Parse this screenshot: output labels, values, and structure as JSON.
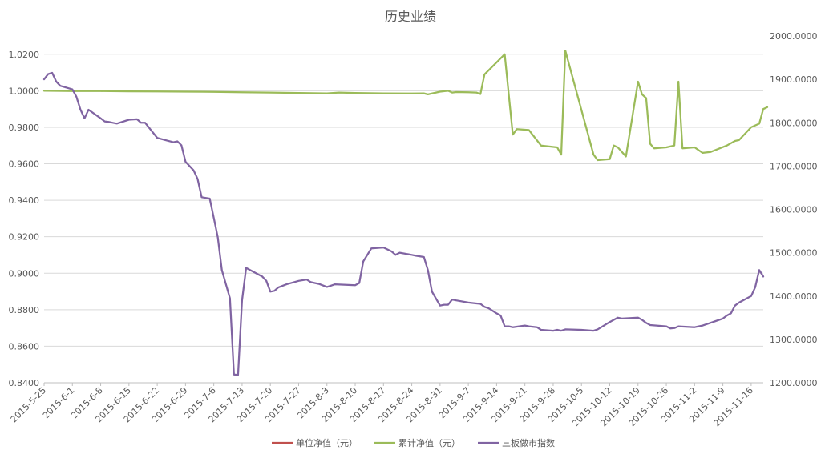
{
  "chart_data": {
    "type": "line",
    "title": "历史业绩",
    "grid": true,
    "legend_position": "bottom",
    "x_tick_labels": [
      "2015-5-25",
      "2015-6-1",
      "2015-6-8",
      "2015-6-15",
      "2015-6-22",
      "2015-6-29",
      "2015-7-6",
      "2015-7-13",
      "2015-7-20",
      "2015-7-27",
      "2015-8-3",
      "2015-8-10",
      "2015-8-17",
      "2015-8-24",
      "2015-8-31",
      "2015-9-7",
      "2015-9-14",
      "2015-9-21",
      "2015-9-28",
      "2015-10-5",
      "2015-10-12",
      "2015-10-19",
      "2015-10-26",
      "2015-11-2",
      "2015-11-9",
      "2015-11-16"
    ],
    "x_range": [
      "2015-5-25",
      "2015-11-19"
    ],
    "y_left": {
      "range": [
        0.84,
        1.03
      ],
      "ticks": [
        "0.8400",
        "0.8600",
        "0.8800",
        "0.9000",
        "0.9200",
        "0.9400",
        "0.9600",
        "0.9800",
        "1.0000",
        "1.0200"
      ]
    },
    "y_right": {
      "range": [
        1200,
        2000
      ],
      "ticks": [
        "1200.0000",
        "1300.0000",
        "1400.0000",
        "1500.0000",
        "1600.0000",
        "1700.0000",
        "1800.0000",
        "1900.0000",
        "2000.0000"
      ]
    },
    "series": [
      {
        "name": "单位净值（元）",
        "color": "#c0504d",
        "axis": "left",
        "points": []
      },
      {
        "name": "累计净值（元）",
        "color": "#9bbb59",
        "axis": "left",
        "points": [
          [
            "2015-5-25",
            1.0
          ],
          [
            "2015-6-1",
            0.9998
          ],
          [
            "2015-6-8",
            0.9998
          ],
          [
            "2015-6-15",
            0.9997
          ],
          [
            "2015-6-22",
            0.9996
          ],
          [
            "2015-6-29",
            0.9995
          ],
          [
            "2015-7-6",
            0.9994
          ],
          [
            "2015-7-13",
            0.9992
          ],
          [
            "2015-7-20",
            0.999
          ],
          [
            "2015-7-27",
            0.9988
          ],
          [
            "2015-8-3",
            0.9986
          ],
          [
            "2015-8-6",
            0.999
          ],
          [
            "2015-8-10",
            0.9988
          ],
          [
            "2015-8-17",
            0.9986
          ],
          [
            "2015-8-24",
            0.9985
          ],
          [
            "2015-8-27",
            0.9986
          ],
          [
            "2015-8-28",
            0.998
          ],
          [
            "2015-8-31",
            0.9995
          ],
          [
            "2015-9-2",
            1.0
          ],
          [
            "2015-9-3",
            0.999
          ],
          [
            "2015-9-4",
            0.9993
          ],
          [
            "2015-9-7",
            0.9992
          ],
          [
            "2015-9-9",
            0.999
          ],
          [
            "2015-9-10",
            0.9982
          ],
          [
            "2015-9-11",
            1.009
          ],
          [
            "2015-9-16",
            1.02
          ],
          [
            "2015-9-18",
            0.976
          ],
          [
            "2015-9-19",
            0.979
          ],
          [
            "2015-9-22",
            0.9785
          ],
          [
            "2015-9-25",
            0.97
          ],
          [
            "2015-9-29",
            0.969
          ],
          [
            "2015-9-30",
            0.965
          ],
          [
            "2015-10-1",
            1.022
          ],
          [
            "2015-10-8",
            0.965
          ],
          [
            "2015-10-9",
            0.962
          ],
          [
            "2015-10-12",
            0.9625
          ],
          [
            "2015-10-13",
            0.97
          ],
          [
            "2015-10-14",
            0.969
          ],
          [
            "2015-10-16",
            0.964
          ],
          [
            "2015-10-19",
            1.005
          ],
          [
            "2015-10-20",
            0.998
          ],
          [
            "2015-10-21",
            0.996
          ],
          [
            "2015-10-22",
            0.971
          ],
          [
            "2015-10-23",
            0.9685
          ],
          [
            "2015-10-26",
            0.969
          ],
          [
            "2015-10-28",
            0.97
          ],
          [
            "2015-10-29",
            1.005
          ],
          [
            "2015-10-30",
            0.9685
          ],
          [
            "2015-11-2",
            0.969
          ],
          [
            "2015-11-4",
            0.966
          ],
          [
            "2015-11-6",
            0.9665
          ],
          [
            "2015-11-10",
            0.97
          ],
          [
            "2015-11-12",
            0.9725
          ],
          [
            "2015-11-13",
            0.973
          ],
          [
            "2015-11-16",
            0.98
          ],
          [
            "2015-11-18",
            0.982
          ],
          [
            "2015-11-19",
            0.99
          ],
          [
            "2015-11-20",
            0.991
          ]
        ]
      },
      {
        "name": "三板做市指数",
        "color": "#8064a2",
        "axis": "right",
        "points": [
          [
            "2015-5-25",
            1900
          ],
          [
            "2015-5-26",
            1912
          ],
          [
            "2015-5-27",
            1915
          ],
          [
            "2015-5-28",
            1895
          ],
          [
            "2015-5-29",
            1885
          ],
          [
            "2015-6-1",
            1877
          ],
          [
            "2015-6-2",
            1860
          ],
          [
            "2015-6-3",
            1830
          ],
          [
            "2015-6-4",
            1810
          ],
          [
            "2015-6-5",
            1830
          ],
          [
            "2015-6-8",
            1810
          ],
          [
            "2015-6-9",
            1803
          ],
          [
            "2015-6-10",
            1802
          ],
          [
            "2015-6-11",
            1800
          ],
          [
            "2015-6-12",
            1798
          ],
          [
            "2015-6-15",
            1807
          ],
          [
            "2015-6-17",
            1808
          ],
          [
            "2015-6-18",
            1800
          ],
          [
            "2015-6-19",
            1800
          ],
          [
            "2015-6-22",
            1765
          ],
          [
            "2015-6-24",
            1760
          ],
          [
            "2015-6-26",
            1755
          ],
          [
            "2015-6-27",
            1757
          ],
          [
            "2015-6-28",
            1748
          ],
          [
            "2015-6-29",
            1710
          ],
          [
            "2015-7-1",
            1690
          ],
          [
            "2015-7-2",
            1670
          ],
          [
            "2015-7-3",
            1628
          ],
          [
            "2015-7-5",
            1625
          ],
          [
            "2015-7-6",
            1580
          ],
          [
            "2015-7-7",
            1535
          ],
          [
            "2015-7-8",
            1460
          ],
          [
            "2015-7-10",
            1395
          ],
          [
            "2015-7-11",
            1219
          ],
          [
            "2015-7-12",
            1218
          ],
          [
            "2015-7-13",
            1390
          ],
          [
            "2015-7-14",
            1465
          ],
          [
            "2015-7-16",
            1455
          ],
          [
            "2015-7-17",
            1450
          ],
          [
            "2015-7-18",
            1445
          ],
          [
            "2015-7-19",
            1435
          ],
          [
            "2015-7-20",
            1410
          ],
          [
            "2015-7-21",
            1412
          ],
          [
            "2015-7-22",
            1420
          ],
          [
            "2015-7-24",
            1427
          ],
          [
            "2015-7-27",
            1435
          ],
          [
            "2015-7-29",
            1438
          ],
          [
            "2015-7-30",
            1432
          ],
          [
            "2015-8-1",
            1428
          ],
          [
            "2015-8-3",
            1421
          ],
          [
            "2015-8-4",
            1424
          ],
          [
            "2015-8-5",
            1427
          ],
          [
            "2015-8-10",
            1425
          ],
          [
            "2015-8-11",
            1430
          ],
          [
            "2015-8-12",
            1480
          ],
          [
            "2015-8-14",
            1510
          ],
          [
            "2015-8-17",
            1512
          ],
          [
            "2015-8-19",
            1503
          ],
          [
            "2015-8-20",
            1495
          ],
          [
            "2015-8-21",
            1500
          ],
          [
            "2015-8-24",
            1495
          ],
          [
            "2015-8-25",
            1493
          ],
          [
            "2015-8-27",
            1490
          ],
          [
            "2015-8-28",
            1460
          ],
          [
            "2015-8-29",
            1410
          ],
          [
            "2015-8-31",
            1378
          ],
          [
            "2015-9-1",
            1380
          ],
          [
            "2015-9-2",
            1380
          ],
          [
            "2015-9-3",
            1392
          ],
          [
            "2015-9-4",
            1390
          ],
          [
            "2015-9-7",
            1385
          ],
          [
            "2015-9-9",
            1383
          ],
          [
            "2015-9-10",
            1382
          ],
          [
            "2015-9-11",
            1375
          ],
          [
            "2015-9-12",
            1372
          ],
          [
            "2015-9-14",
            1360
          ],
          [
            "2015-9-15",
            1355
          ],
          [
            "2015-9-16",
            1330
          ],
          [
            "2015-9-17",
            1330
          ],
          [
            "2015-9-18",
            1328
          ],
          [
            "2015-9-21",
            1332
          ],
          [
            "2015-9-22",
            1330
          ],
          [
            "2015-9-24",
            1328
          ],
          [
            "2015-9-25",
            1322
          ],
          [
            "2015-9-28",
            1320
          ],
          [
            "2015-9-29",
            1322
          ],
          [
            "2015-9-30",
            1320
          ],
          [
            "2015-10-1",
            1323
          ],
          [
            "2015-10-5",
            1322
          ],
          [
            "2015-10-8",
            1320
          ],
          [
            "2015-10-9",
            1323
          ],
          [
            "2015-10-12",
            1340
          ],
          [
            "2015-10-13",
            1345
          ],
          [
            "2015-10-14",
            1350
          ],
          [
            "2015-10-15",
            1348
          ],
          [
            "2015-10-19",
            1350
          ],
          [
            "2015-10-20",
            1345
          ],
          [
            "2015-10-21",
            1338
          ],
          [
            "2015-10-22",
            1333
          ],
          [
            "2015-10-26",
            1330
          ],
          [
            "2015-10-27",
            1325
          ],
          [
            "2015-10-28",
            1326
          ],
          [
            "2015-10-29",
            1330
          ],
          [
            "2015-11-2",
            1328
          ],
          [
            "2015-11-3",
            1330
          ],
          [
            "2015-11-4",
            1332
          ],
          [
            "2015-11-9",
            1348
          ],
          [
            "2015-11-10",
            1355
          ],
          [
            "2015-11-11",
            1360
          ],
          [
            "2015-11-12",
            1378
          ],
          [
            "2015-11-13",
            1385
          ],
          [
            "2015-11-16",
            1400
          ],
          [
            "2015-11-17",
            1420
          ],
          [
            "2015-11-18",
            1460
          ],
          [
            "2015-11-19",
            1445
          ]
        ]
      }
    ]
  }
}
